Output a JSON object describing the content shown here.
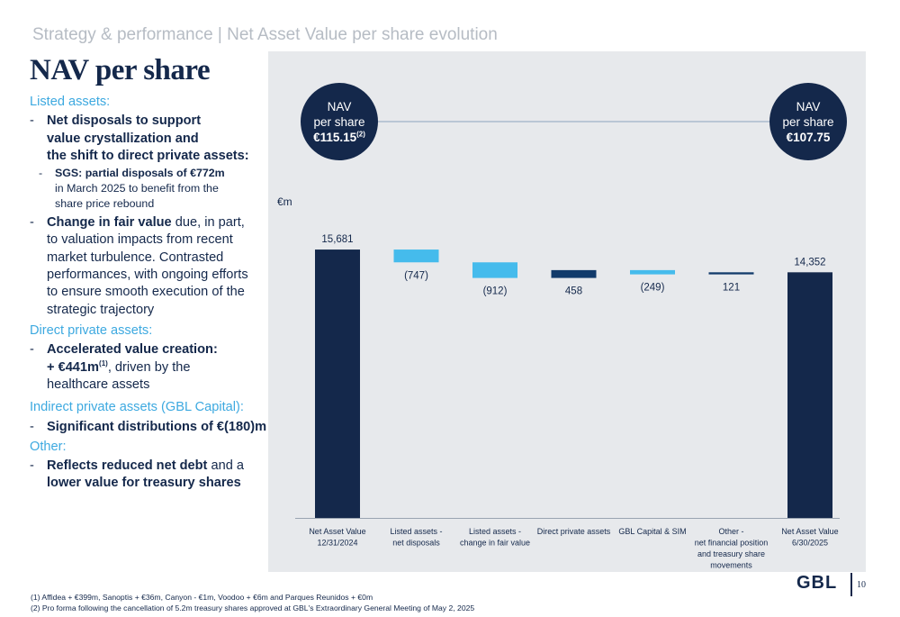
{
  "header": {
    "section": "Strategy & performance | Net Asset Value per share evolution",
    "title": "NAV per share"
  },
  "left": {
    "listed_label": "Listed assets:",
    "listed_b1_l1": "Net disposals to support",
    "listed_b1_l2": "value crystallization and",
    "listed_b1_l3": "the shift to direct private assets:",
    "sgs_bold": "SGS: partial disposals of €772m",
    "sgs_l2": "in March 2025 to benefit from the",
    "sgs_l3": "share price rebound",
    "listed_b2_bold": "Change in fair value",
    "listed_b2_rest": " due, in part,",
    "listed_b2_l2": "to valuation impacts from recent",
    "listed_b2_l3": "market turbulence. Contrasted",
    "listed_b2_l4": "performances, with ongoing efforts",
    "listed_b2_l5": "to ensure smooth execution of the",
    "listed_b2_l6": "strategic trajectory",
    "direct_label": "Direct private assets:",
    "direct_b1_l1": "Accelerated value creation:",
    "direct_b1_amount": "+ €441m",
    "direct_b1_sup": "(1)",
    "direct_b1_rest": ", driven by the",
    "direct_b1_l3": "healthcare assets",
    "indirect_label": "Indirect private assets (GBL Capital):",
    "indirect_b1": "Significant distributions of €(180)m",
    "other_label": "Other:",
    "other_b1_bold": "Reflects reduced net debt",
    "other_b1_rest": " and a",
    "other_b1_l2": "lower value for treasury shares",
    "dash": "-"
  },
  "bubbles": {
    "start_l1": "NAV",
    "start_l2": "per share",
    "start_value": "€115.15",
    "start_sup": "(2)",
    "end_l1": "NAV",
    "end_l2": "per share",
    "end_value": "€107.75"
  },
  "chart_data": {
    "type": "bar",
    "subtype": "waterfall",
    "unit_label": "€m",
    "categories": [
      [
        "Net Asset Value",
        "12/31/2024"
      ],
      [
        "Listed assets -",
        "net disposals"
      ],
      [
        "Listed assets -",
        "change in fair value"
      ],
      [
        "Direct private assets"
      ],
      [
        "GBL Capital & SIM"
      ],
      [
        "Other -",
        "net financial position",
        "and treasury share",
        "movements"
      ],
      [
        "Net Asset Value",
        "6/30/2025"
      ]
    ],
    "values": [
      15681,
      -747,
      -912,
      458,
      -249,
      121,
      14352
    ],
    "kinds": [
      "total",
      "delta",
      "delta",
      "delta",
      "delta",
      "delta",
      "total"
    ],
    "value_labels": [
      "15,681",
      "(747)",
      "(912)",
      "458",
      "(249)",
      "121",
      "14,352"
    ],
    "colors": [
      "#14284b",
      "#45bbec",
      "#45bbec",
      "#123b6b",
      "#45bbec",
      "#123b6b",
      "#14284b"
    ],
    "ylim": [
      0,
      17000
    ],
    "grid": false,
    "legend": "none"
  },
  "footnotes": {
    "f1": "(1)  Affidea + €399m, Sanoptis + €36m, Canyon - €1m, Voodoo + €6m and Parques Reunidos + €0m",
    "f2": "(2)  Pro forma following the cancellation of 5.2m treasury shares approved at GBL's Extraordinary General Meeting of May 2, 2025"
  },
  "brand": {
    "logo": "GBL",
    "page_number": "10"
  }
}
